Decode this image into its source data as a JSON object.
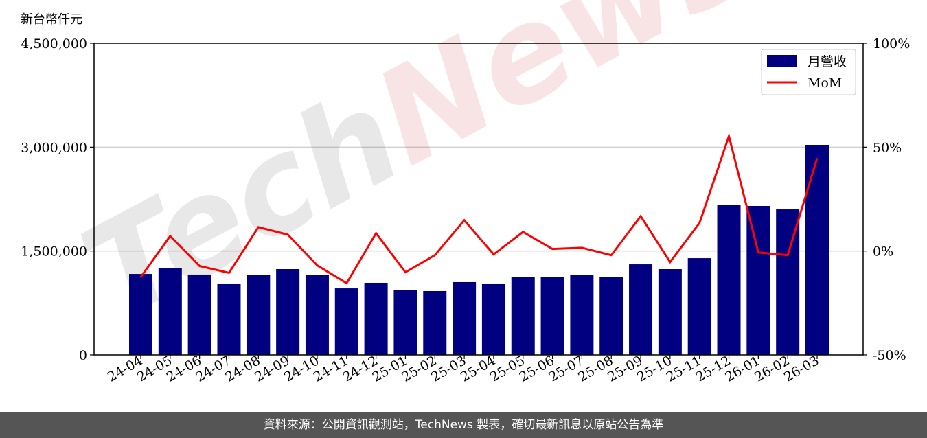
{
  "unit_label": "新台幣仟元",
  "footer": "資料來源：公開資訊觀測站，TechNews 製表，確切最新訊息以原站公告為準",
  "watermark": "TechNews",
  "chart_data": {
    "type": "bar+line",
    "categories": [
      "24-04",
      "24-05",
      "24-06",
      "24-07",
      "24-08",
      "24-09",
      "24-10",
      "24-11",
      "24-12",
      "25-01",
      "25-02",
      "25-03",
      "25-04",
      "25-05",
      "25-06",
      "25-07",
      "25-08",
      "25-09",
      "25-10",
      "25-11",
      "25-12",
      "26-01",
      "26-02",
      "26-03"
    ],
    "series": [
      {
        "name": "月營收",
        "type": "bar",
        "axis": "left",
        "color": "#000080",
        "values": [
          1169000,
          1249000,
          1160000,
          1031000,
          1150000,
          1239000,
          1150000,
          961000,
          1041000,
          932000,
          922000,
          1051000,
          1031000,
          1130000,
          1130000,
          1150000,
          1120000,
          1308000,
          1239000,
          1397000,
          2170000,
          2151000,
          2101000,
          3033000
        ]
      },
      {
        "name": "MoM",
        "type": "line",
        "axis": "right",
        "color": "#ff0000",
        "values": [
          -12.5,
          7.2,
          -7.2,
          -10.5,
          11.5,
          7.9,
          -6.9,
          -15.5,
          8.6,
          -10.2,
          -2.0,
          14.8,
          -1.6,
          9.2,
          1.0,
          1.6,
          -2.0,
          16.8,
          -5.3,
          13.5,
          55.3,
          -0.7,
          -2.0,
          44.7
        ]
      }
    ],
    "y_left": {
      "range": [
        0,
        4500000
      ],
      "ticks": [
        "0",
        "1,500,000",
        "3,000,000",
        "4,500,000"
      ],
      "tick_values": [
        0,
        1500000,
        3000000,
        4500000
      ]
    },
    "y_right": {
      "range": [
        -50,
        100
      ],
      "ticks": [
        "-50%",
        "0%",
        "50%",
        "100%"
      ],
      "tick_values": [
        -50,
        0,
        50,
        100
      ]
    },
    "grid": "horizontal",
    "legend": "top-right"
  }
}
